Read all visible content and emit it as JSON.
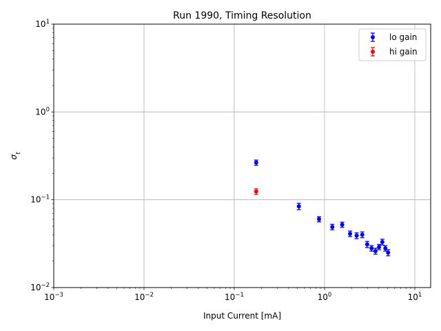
{
  "chart_data": {
    "type": "scatter",
    "title": "Run 1990, Timing Resolution",
    "xlabel": "Input Current [mA]",
    "ylabel": "σ_t",
    "xscale": "log",
    "yscale": "log",
    "xlim": [
      0.001,
      15
    ],
    "ylim": [
      0.01,
      10
    ],
    "grid": true,
    "legend_position": "top-right",
    "x_ticks": [
      {
        "value": 0.001,
        "base": "10",
        "exp": "−3"
      },
      {
        "value": 0.01,
        "base": "10",
        "exp": "−2"
      },
      {
        "value": 0.1,
        "base": "10",
        "exp": "−1"
      },
      {
        "value": 1,
        "base": "10",
        "exp": "0"
      },
      {
        "value": 10,
        "base": "10",
        "exp": "1"
      }
    ],
    "y_ticks": [
      {
        "value": 0.01,
        "base": "10",
        "exp": "−2"
      },
      {
        "value": 0.1,
        "base": "10",
        "exp": "−1"
      },
      {
        "value": 1,
        "base": "10",
        "exp": "0"
      },
      {
        "value": 10,
        "base": "10",
        "exp": "1"
      }
    ],
    "series": [
      {
        "name": "lo gain",
        "color": "#0000ff",
        "points": [
          {
            "x": 0.175,
            "y": 0.265,
            "err": 0.018
          },
          {
            "x": 0.52,
            "y": 0.084,
            "err": 0.007
          },
          {
            "x": 0.87,
            "y": 0.06,
            "err": 0.004
          },
          {
            "x": 1.22,
            "y": 0.049,
            "err": 0.0035
          },
          {
            "x": 1.57,
            "y": 0.052,
            "err": 0.0035
          },
          {
            "x": 1.92,
            "y": 0.041,
            "err": 0.003
          },
          {
            "x": 2.27,
            "y": 0.039,
            "err": 0.003
          },
          {
            "x": 2.62,
            "y": 0.04,
            "err": 0.003
          },
          {
            "x": 2.97,
            "y": 0.031,
            "err": 0.0025
          },
          {
            "x": 3.32,
            "y": 0.028,
            "err": 0.002
          },
          {
            "x": 3.67,
            "y": 0.026,
            "err": 0.002
          },
          {
            "x": 4.02,
            "y": 0.029,
            "err": 0.002
          },
          {
            "x": 4.37,
            "y": 0.033,
            "err": 0.0025
          },
          {
            "x": 4.72,
            "y": 0.028,
            "err": 0.002
          },
          {
            "x": 5.07,
            "y": 0.025,
            "err": 0.002
          }
        ]
      },
      {
        "name": "hi gain",
        "color": "#ff0000",
        "points": [
          {
            "x": 0.175,
            "y": 0.124,
            "err": 0.009
          }
        ]
      }
    ]
  }
}
